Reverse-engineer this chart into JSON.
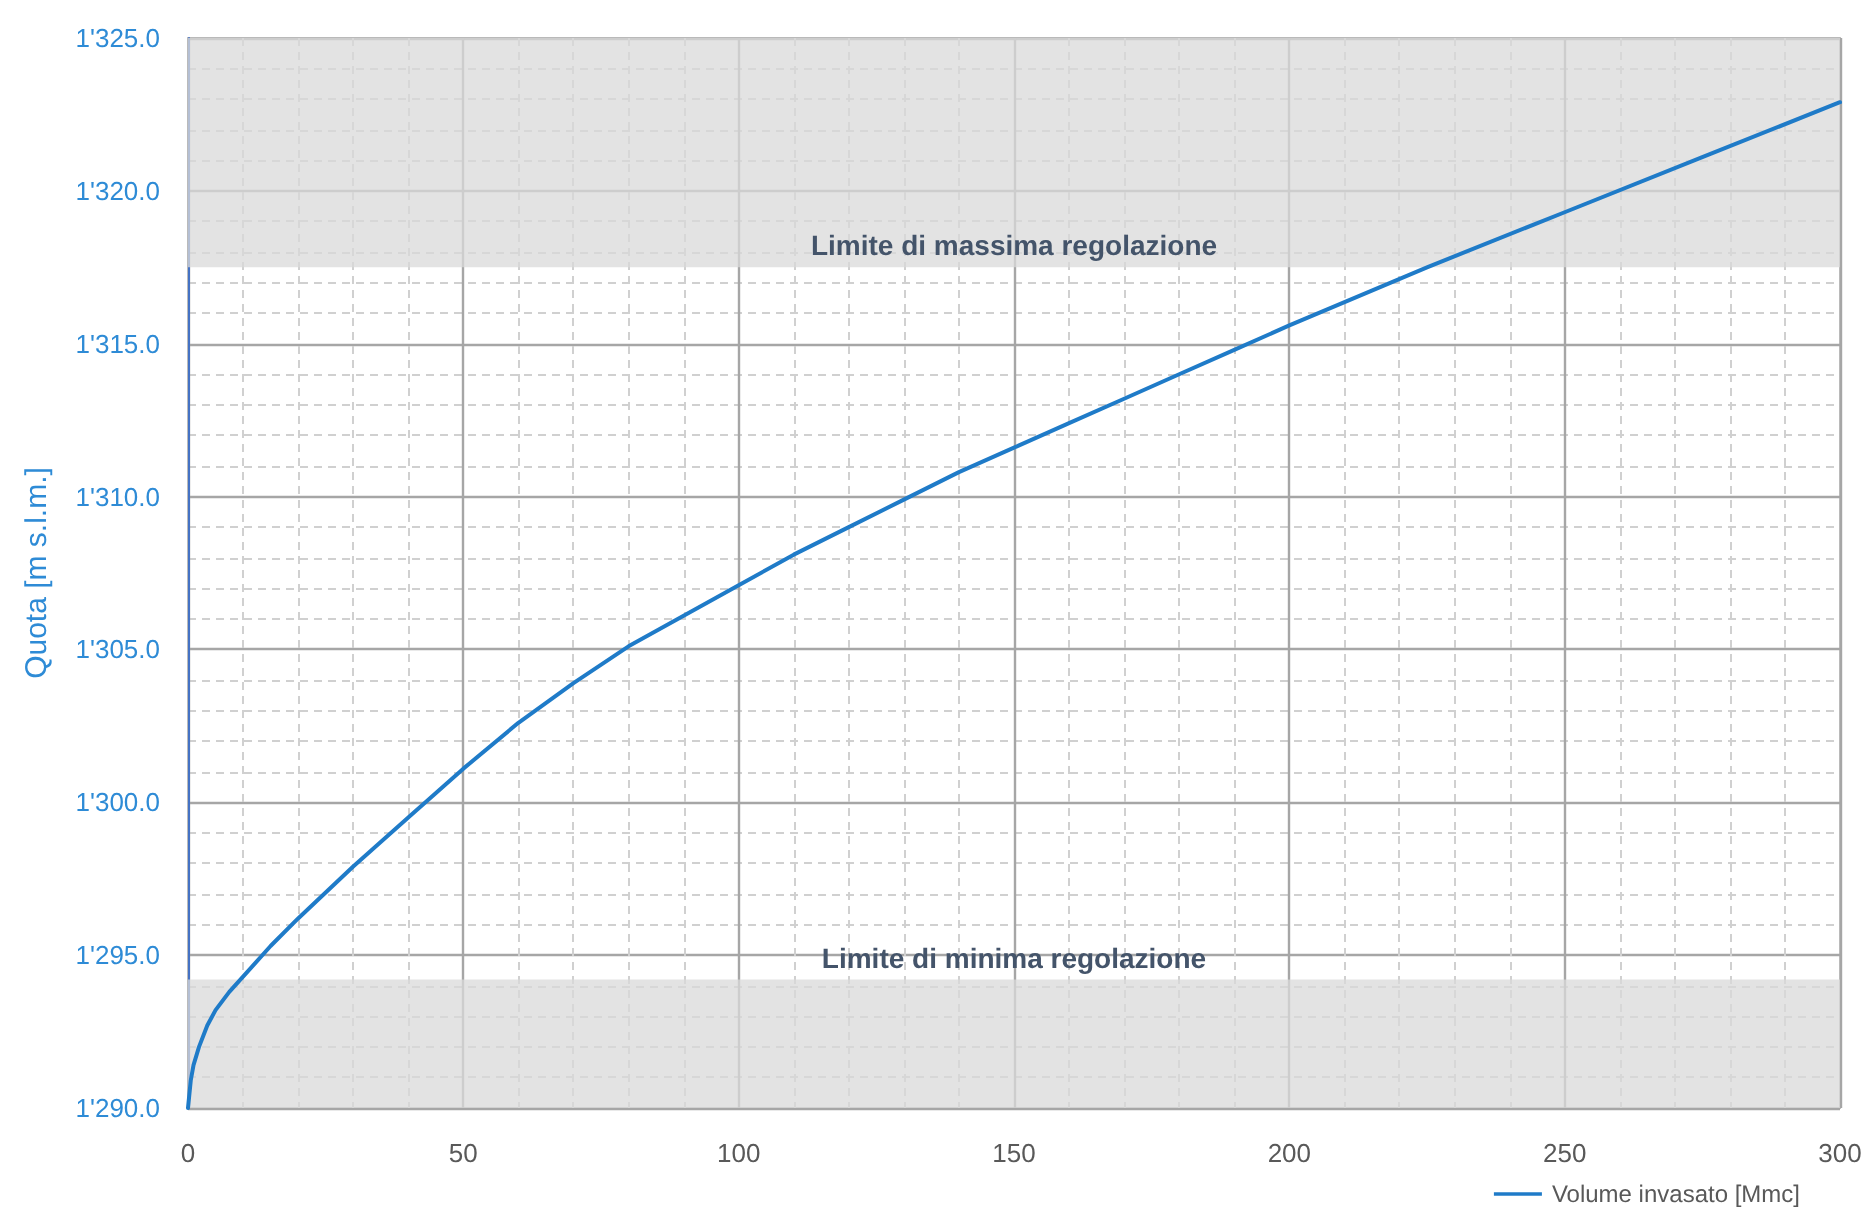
{
  "chart_data": {
    "type": "line",
    "ylabel": "Quota [m s.l.m.]",
    "x": [
      0,
      0.5,
      1,
      2,
      3.5,
      5,
      7.5,
      10,
      15,
      20,
      30,
      40,
      50,
      60,
      70,
      80,
      90,
      100,
      110,
      120,
      130,
      140,
      150,
      160,
      170,
      180,
      190,
      200,
      225,
      250,
      275,
      300
    ],
    "series": [
      {
        "name": "Volume invasato [Mmc]",
        "color": "#1f7bc8",
        "values": [
          1290,
          1290.9,
          1291.4,
          1292,
          1292.7,
          1293.2,
          1293.8,
          1294.3,
          1295.3,
          1296.2,
          1297.9,
          1299.5,
          1301.1,
          1302.6,
          1303.9,
          1305.1,
          1306.1,
          1307.1,
          1308.1,
          1309.0,
          1309.9,
          1310.8,
          1311.6,
          1312.4,
          1313.2,
          1314.0,
          1314.8,
          1315.6,
          1317.5,
          1319.3,
          1321.1,
          1322.9
        ]
      }
    ],
    "xlim": [
      0,
      300
    ],
    "xticks": [
      0,
      50,
      100,
      150,
      200,
      250,
      300
    ],
    "ylim": [
      1290,
      1325
    ],
    "yticks": [
      {
        "value": 1290,
        "label": "1'290.0"
      },
      {
        "value": 1295,
        "label": "1'295.0"
      },
      {
        "value": 1300,
        "label": "1'300.0"
      },
      {
        "value": 1305,
        "label": "1'305.0"
      },
      {
        "value": 1310,
        "label": "1'310.0"
      },
      {
        "value": 1315,
        "label": "1'315.0"
      },
      {
        "value": 1320,
        "label": "1'320.0"
      },
      {
        "value": 1325,
        "label": "1'325.0"
      }
    ],
    "bands": [
      {
        "axis": "y",
        "from": 1317.5,
        "to": 1325,
        "label": "Limite di massima regolazione",
        "color": "#d9d9d9"
      },
      {
        "axis": "y",
        "from": 1290,
        "to": 1294.2,
        "label": "Limite di minima regolazione",
        "color": "#d9d9d9"
      }
    ],
    "grid": true,
    "legend": "bottom right",
    "marker": "none",
    "line_style": "solid"
  }
}
